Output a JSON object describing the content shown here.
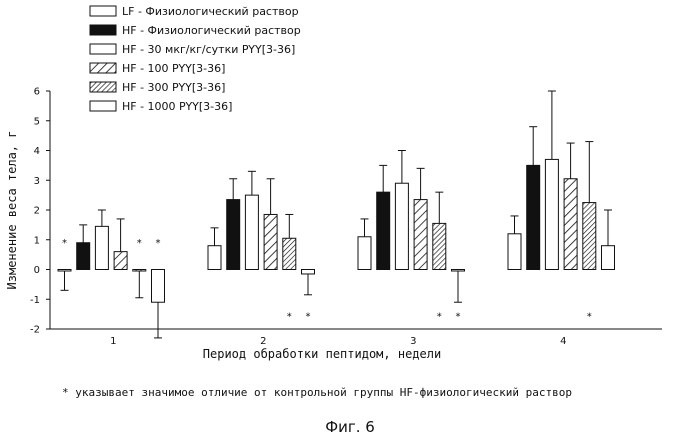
{
  "chart_data": {
    "type": "bar",
    "categories": [
      "1",
      "2",
      "3",
      "4"
    ],
    "xlabel": "Период обработки пептидом, недели",
    "ylabel": "Изменение веса тела, г",
    "ylim": [
      -2,
      6
    ],
    "yticks": [
      "-2",
      "-1",
      "0",
      "1",
      "2",
      "3",
      "4",
      "5",
      "6"
    ],
    "grid": false,
    "legend_position": "top-left",
    "series": [
      {
        "name": "LF - Физиологический раствор",
        "fill": "empty",
        "values": [
          -0.05,
          0.8,
          1.1,
          1.2
        ],
        "errors": [
          0.65,
          0.6,
          0.6,
          0.6
        ],
        "stars": [
          true,
          false,
          false,
          false
        ]
      },
      {
        "name": "HF - Физиологический раствор",
        "fill": "solid",
        "values": [
          0.9,
          2.35,
          2.6,
          3.5
        ],
        "errors": [
          0.6,
          0.7,
          0.9,
          1.3
        ],
        "stars": [
          false,
          false,
          false,
          false
        ]
      },
      {
        "name": "HF - 30 мкг/кг/сутки PYY[3-36]",
        "fill": "empty",
        "values": [
          1.45,
          2.5,
          2.9,
          3.7
        ],
        "errors": [
          0.55,
          0.8,
          1.1,
          2.3
        ],
        "stars": [
          false,
          false,
          false,
          false
        ]
      },
      {
        "name": "HF - 100 PYY[3-36]",
        "fill": "hatch-sparse",
        "values": [
          0.6,
          1.85,
          2.35,
          3.05
        ],
        "errors": [
          1.1,
          1.2,
          1.05,
          1.2
        ],
        "stars": [
          false,
          false,
          false,
          false
        ]
      },
      {
        "name": "HF - 300 PYY[3-36]",
        "fill": "hatch-dense",
        "values": [
          -0.05,
          1.05,
          1.55,
          2.25
        ],
        "errors": [
          0.9,
          0.8,
          1.05,
          2.05
        ],
        "stars": [
          true,
          true,
          true,
          true
        ]
      },
      {
        "name": "HF - 1000 PYY[3-36]",
        "fill": "empty",
        "values": [
          -1.1,
          -0.15,
          -0.05,
          0.8
        ],
        "errors": [
          1.2,
          0.7,
          1.05,
          1.2
        ],
        "stars": [
          true,
          true,
          true,
          false
        ]
      }
    ],
    "star_symbol": "*",
    "footnote": "* указывает значимое отличие от контрольной группы HF-физиологический раствор",
    "figure_caption": "Фиг. 6"
  }
}
